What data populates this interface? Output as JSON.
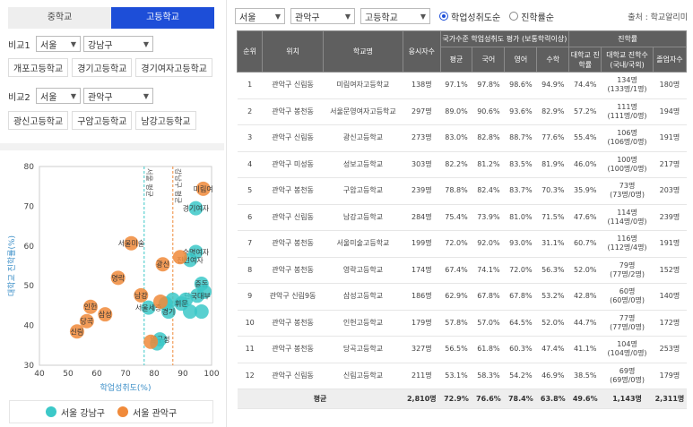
{
  "left": {
    "tabs": [
      "중학교",
      "고등학교"
    ],
    "compare1": {
      "label": "비교1",
      "region": "서울",
      "district": "강남구",
      "chips": [
        "개포고등학교",
        "경기고등학교",
        "경기여자고등학교"
      ]
    },
    "compare2": {
      "label": "비교2",
      "region": "서울",
      "district": "관악구",
      "chips": [
        "광신고등학교",
        "구암고등학교",
        "남강고등학교"
      ]
    },
    "legend": [
      {
        "label": "서울 강남구",
        "color": "#3cc8c8"
      },
      {
        "label": "서울 관악구",
        "color": "#f08a3a"
      }
    ]
  },
  "filters": {
    "region": "서울",
    "district": "관악구",
    "level": "고등학교",
    "sort_options": [
      "학업성취도순",
      "진학률순"
    ],
    "source": "출처 : 학교알리미"
  },
  "table": {
    "headers": {
      "rank": "순위",
      "location": "위치",
      "school": "학교명",
      "exam": "응시자수",
      "group_achievement": "국가수준 학업성취도 평가 (보통학력이상)",
      "group_advance": "진학률",
      "avg": "평균",
      "korean": "국어",
      "english": "영어",
      "math": "수학",
      "college_rate": "대학교 진학률",
      "college_count": "대학교 진학수 (국내/국외)",
      "grads": "졸업자수"
    },
    "rows": [
      {
        "rank": "1",
        "location": "관악구 신림동",
        "school": "미림여자고등학교",
        "exam": "138명",
        "avg": "97.1%",
        "korean": "97.8%",
        "english": "98.6%",
        "math": "94.9%",
        "rate": "74.4%",
        "count1": "134명",
        "count2": "(133명/1명)",
        "grads": "180명"
      },
      {
        "rank": "2",
        "location": "관악구 봉천동",
        "school": "서울문영여자고등학교",
        "exam": "297명",
        "avg": "89.0%",
        "korean": "90.6%",
        "english": "93.6%",
        "math": "82.9%",
        "rate": "57.2%",
        "count1": "111명",
        "count2": "(111명/0명)",
        "grads": "194명"
      },
      {
        "rank": "3",
        "location": "관악구 신림동",
        "school": "광신고등학교",
        "exam": "273명",
        "avg": "83.0%",
        "korean": "82.8%",
        "english": "88.7%",
        "math": "77.6%",
        "rate": "55.4%",
        "count1": "106명",
        "count2": "(106명/0명)",
        "grads": "191명"
      },
      {
        "rank": "4",
        "location": "관악구 미성동",
        "school": "성보고등학교",
        "exam": "303명",
        "avg": "82.2%",
        "korean": "81.2%",
        "english": "83.5%",
        "math": "81.9%",
        "rate": "46.0%",
        "count1": "100명",
        "count2": "(100명/0명)",
        "grads": "217명"
      },
      {
        "rank": "5",
        "location": "관악구 봉천동",
        "school": "구암고등학교",
        "exam": "239명",
        "avg": "78.8%",
        "korean": "82.4%",
        "english": "83.7%",
        "math": "70.3%",
        "rate": "35.9%",
        "count1": "73명",
        "count2": "(73명/0명)",
        "grads": "203명"
      },
      {
        "rank": "6",
        "location": "관악구 신림동",
        "school": "남강고등학교",
        "exam": "284명",
        "avg": "75.4%",
        "korean": "73.9%",
        "english": "81.0%",
        "math": "71.5%",
        "rate": "47.6%",
        "count1": "114명",
        "count2": "(114명/0명)",
        "grads": "239명"
      },
      {
        "rank": "7",
        "location": "관악구 봉천동",
        "school": "서울미술고등학교",
        "exam": "199명",
        "avg": "72.0%",
        "korean": "92.0%",
        "english": "93.0%",
        "math": "31.1%",
        "rate": "60.7%",
        "count1": "116명",
        "count2": "(112명/4명)",
        "grads": "191명"
      },
      {
        "rank": "8",
        "location": "관악구 봉천동",
        "school": "영락고등학교",
        "exam": "174명",
        "avg": "67.4%",
        "korean": "74.1%",
        "english": "72.0%",
        "math": "56.3%",
        "rate": "52.0%",
        "count1": "79명",
        "count2": "(77명/2명)",
        "grads": "152명"
      },
      {
        "rank": "9",
        "location": "관악구 신림9동",
        "school": "삼성고등학교",
        "exam": "186명",
        "avg": "62.9%",
        "korean": "67.8%",
        "english": "67.8%",
        "math": "53.2%",
        "rate": "42.8%",
        "count1": "60명",
        "count2": "(60명/0명)",
        "grads": "140명"
      },
      {
        "rank": "10",
        "location": "관악구 봉천동",
        "school": "인헌고등학교",
        "exam": "179명",
        "avg": "57.8%",
        "korean": "57.0%",
        "english": "64.5%",
        "math": "52.0%",
        "rate": "44.7%",
        "count1": "77명",
        "count2": "(77명/0명)",
        "grads": "172명"
      },
      {
        "rank": "11",
        "location": "관악구 봉천동",
        "school": "당곡고등학교",
        "exam": "327명",
        "avg": "56.5%",
        "korean": "61.8%",
        "english": "60.3%",
        "math": "47.4%",
        "rate": "41.1%",
        "count1": "104명",
        "count2": "(104명/0명)",
        "grads": "253명"
      },
      {
        "rank": "12",
        "location": "관악구 신림동",
        "school": "신림고등학교",
        "exam": "211명",
        "avg": "53.1%",
        "korean": "58.3%",
        "english": "54.2%",
        "math": "46.9%",
        "rate": "38.5%",
        "count1": "69명",
        "count2": "(69명/0명)",
        "grads": "179명"
      }
    ],
    "footer": {
      "label": "평균",
      "exam": "2,810명",
      "avg": "72.9%",
      "korean": "76.6%",
      "english": "78.4%",
      "math": "63.8%",
      "rate": "49.6%",
      "count": "1,143명",
      "grads": "2,311명"
    }
  },
  "chart_data": {
    "type": "scatter",
    "xlabel": "학업성취도(%)",
    "ylabel": "대학교 진학률(%)",
    "xlim": [
      40,
      100
    ],
    "ylim": [
      30,
      80
    ],
    "xticks": [
      40,
      50,
      60,
      70,
      80,
      90,
      100
    ],
    "yticks": [
      30,
      40,
      50,
      60,
      70,
      80
    ],
    "ref_lines": [
      {
        "axis": "x",
        "value": 76.5,
        "label": "서울 평균",
        "color": "#3cc8c8"
      },
      {
        "axis": "x",
        "value": 86.5,
        "label": "강남구 평균",
        "color": "#f08a3a"
      }
    ],
    "series": [
      {
        "name": "서울 강남구",
        "color": "#3cc8c8",
        "points": [
          [
            94.5,
            69.5,
            "경기여자"
          ],
          [
            94.5,
            58.5,
            "숙명여자"
          ],
          [
            92.5,
            56.5,
            "진선여자"
          ],
          [
            96.5,
            50.5,
            "중동"
          ],
          [
            97.5,
            48.5,
            ""
          ],
          [
            95,
            47.5,
            "단국대부"
          ],
          [
            91,
            46.5,
            ""
          ],
          [
            86.5,
            46.5,
            ""
          ],
          [
            84,
            45.5,
            ""
          ],
          [
            96.5,
            43.5,
            ""
          ],
          [
            92.5,
            43.5,
            ""
          ],
          [
            89.5,
            45.5,
            "휘문"
          ],
          [
            85,
            43.5,
            "경기"
          ],
          [
            78,
            44.5,
            "서울세종"
          ],
          [
            82,
            36.5,
            "압구정"
          ],
          [
            81,
            35.5,
            ""
          ]
        ]
      },
      {
        "name": "서울 관악구",
        "color": "#f08a3a",
        "points": [
          [
            97.1,
            74.4,
            "미림여"
          ],
          [
            89.0,
            57.2,
            ""
          ],
          [
            83.0,
            55.4,
            "광신"
          ],
          [
            82.2,
            46.0,
            ""
          ],
          [
            78.8,
            35.9,
            ""
          ],
          [
            75.4,
            47.6,
            "남강"
          ],
          [
            72.0,
            60.7,
            "서울미술"
          ],
          [
            67.4,
            52.0,
            "영락"
          ],
          [
            62.9,
            42.8,
            "삼성"
          ],
          [
            57.8,
            44.7,
            "인헌"
          ],
          [
            56.5,
            41.1,
            "당곡"
          ],
          [
            53.1,
            38.5,
            "신림"
          ]
        ]
      }
    ]
  }
}
